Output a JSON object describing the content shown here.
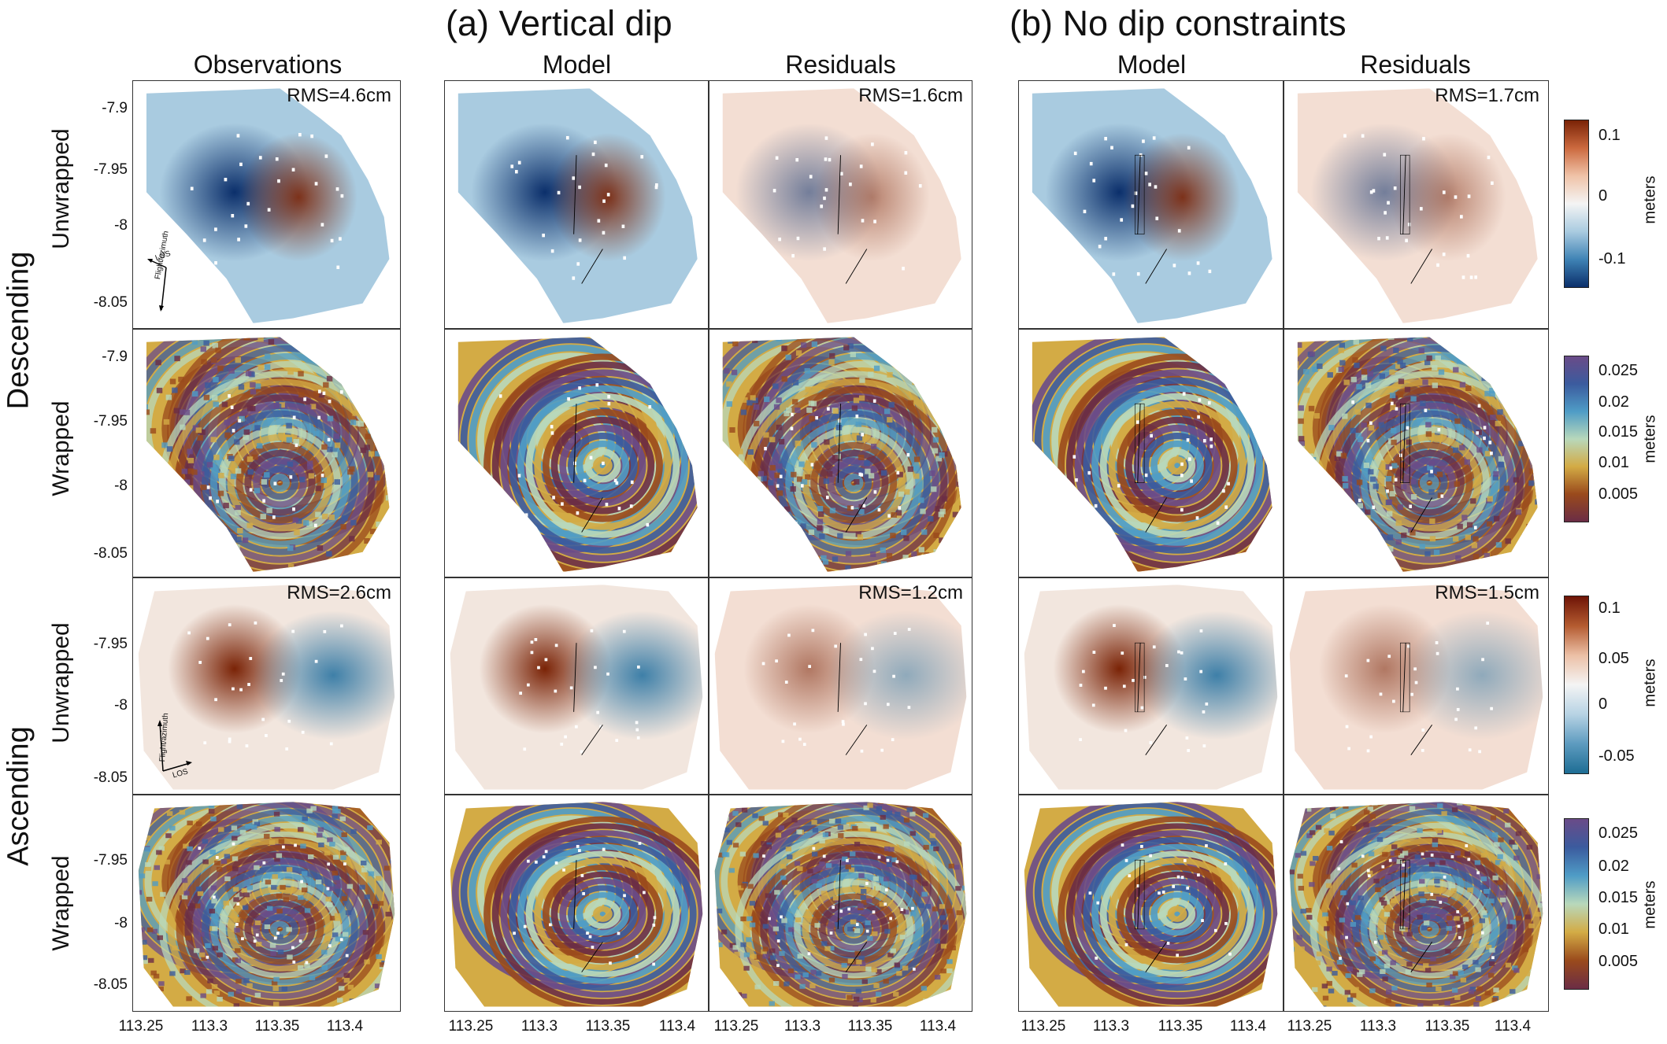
{
  "groups": {
    "a_title": "(a) Vertical dip",
    "b_title": "(b) No dip constraints"
  },
  "columns": {
    "observations": "Observations",
    "model": "Model",
    "residuals": "Residuals"
  },
  "rows": {
    "unwrapped": "Unwrapped",
    "wrapped": "Wrapped",
    "descending": "Descending",
    "ascending": "Ascending"
  },
  "rms": {
    "desc_obs": "RMS=4.6cm",
    "desc_a_res": "RMS=1.6cm",
    "desc_b_res": "RMS=1.7cm",
    "asc_obs": "RMS=2.6cm",
    "asc_a_res": "RMS=1.2cm",
    "asc_b_res": "RMS=1.5cm"
  },
  "arrows": {
    "los": "LOS",
    "flight": "Flight/azimuth"
  },
  "colorbars": {
    "unit": "meters",
    "desc_unwrapped_ticks": [
      "0.1",
      "0",
      "-0.1"
    ],
    "wrapped_ticks": [
      "0.025",
      "0.02",
      "0.015",
      "0.01",
      "0.005"
    ],
    "asc_unwrapped_ticks": [
      "0.1",
      "0.05",
      "0",
      "-0.05"
    ],
    "diverging_colors": [
      "#0b2f6b",
      "#3f83b5",
      "#a9cbe0",
      "#f4f4f4",
      "#f0c3a8",
      "#cc6a3f",
      "#7a2306"
    ],
    "cyclic_colors": [
      "#6b2d45",
      "#9a4a1c",
      "#d3ab45",
      "#b8d8bb",
      "#4f9cc6",
      "#3b5b9e",
      "#6a4b88"
    ]
  },
  "chart_data": {
    "type": "heatmap",
    "title": "",
    "xlabel": "",
    "ylabel": "",
    "x_ticks": [
      "113.25",
      "113.3",
      "113.35",
      "113.4"
    ],
    "y_ticks_descending": [
      "-7.9",
      "-7.95",
      "-8",
      "-8.05"
    ],
    "y_ticks_ascending": [
      "-7.95",
      "-8",
      "-8.05"
    ],
    "xlim": [
      113.22,
      113.42
    ],
    "panels": [
      {
        "track": "Descending",
        "mode": "Unwrapped",
        "columns": [
          "Observations",
          "Model (a)",
          "Residuals (a)",
          "Model (b)",
          "Residuals (b)"
        ],
        "rms_cm": [
          4.6,
          null,
          1.6,
          null,
          1.7
        ],
        "colorbar_range_m": [
          -0.13,
          0.13
        ]
      },
      {
        "track": "Descending",
        "mode": "Wrapped",
        "columns": [
          "Observations",
          "Model (a)",
          "Residuals (a)",
          "Model (b)",
          "Residuals (b)"
        ],
        "colorbar_range_m": [
          0,
          0.028
        ]
      },
      {
        "track": "Ascending",
        "mode": "Unwrapped",
        "columns": [
          "Observations",
          "Model (a)",
          "Residuals (a)",
          "Model (b)",
          "Residuals (b)"
        ],
        "rms_cm": [
          2.6,
          null,
          1.2,
          null,
          1.5
        ],
        "colorbar_range_m": [
          -0.07,
          0.11
        ]
      },
      {
        "track": "Ascending",
        "mode": "Wrapped",
        "columns": [
          "Observations",
          "Model (a)",
          "Residuals (a)",
          "Model (b)",
          "Residuals (b)"
        ],
        "colorbar_range_m": [
          0,
          0.028
        ]
      }
    ]
  }
}
